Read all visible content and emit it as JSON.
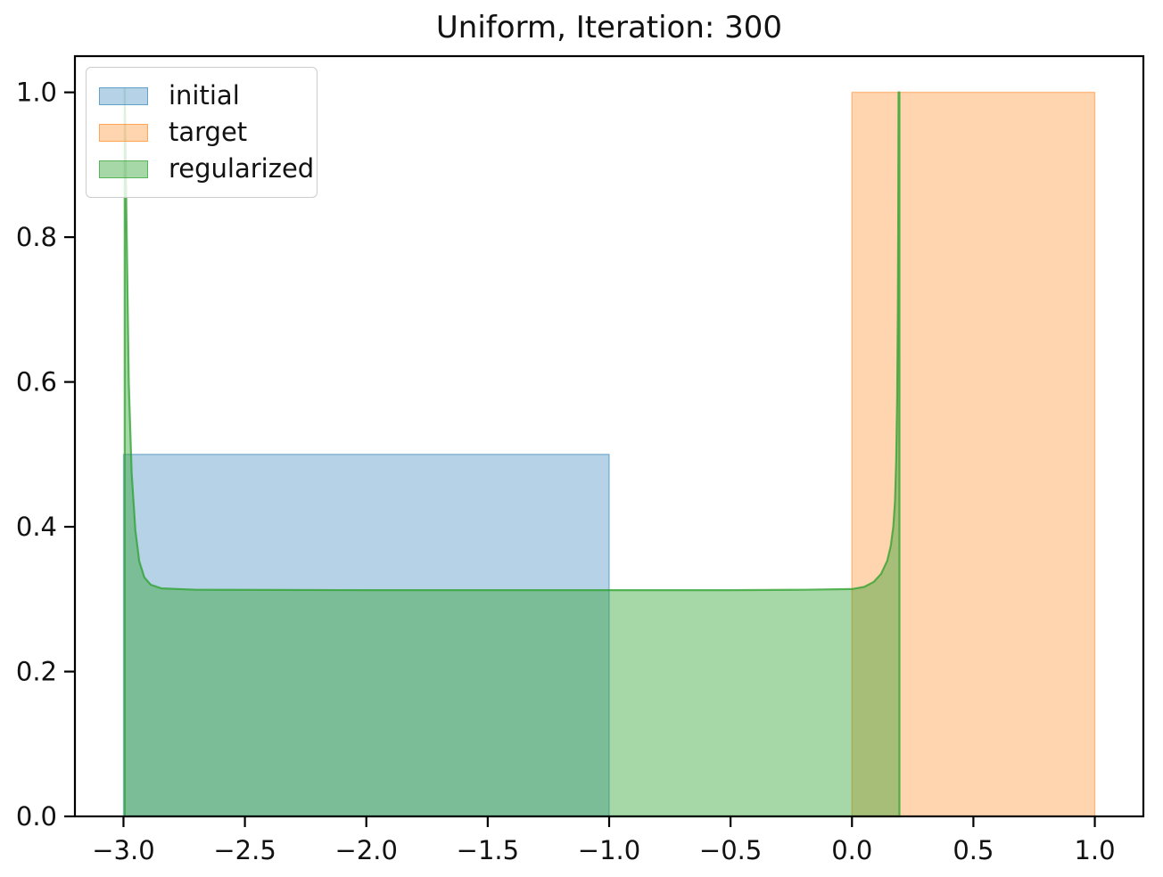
{
  "figure": {
    "title": "Uniform, Iteration: 300"
  },
  "legend": {
    "position": "upper left",
    "items": [
      {
        "label": "initial",
        "color": "#1f77b4"
      },
      {
        "label": "target",
        "color": "#ff7f0e"
      },
      {
        "label": "regularized",
        "color": "#2ca02c"
      }
    ]
  },
  "chart_data": {
    "type": "area",
    "title": "Uniform, Iteration: 300",
    "xlabel": "",
    "ylabel": "",
    "grid": false,
    "legend_position": "upper left",
    "xlim": [
      -3.2,
      1.2
    ],
    "ylim": [
      0,
      1.05
    ],
    "x_ticks": {
      "values": [
        -3.0,
        -2.5,
        -2.0,
        -1.5,
        -1.0,
        -0.5,
        0.0,
        0.5,
        1.0
      ],
      "labels": [
        "−3.0",
        "−2.5",
        "−2.0",
        "−1.5",
        "−1.0",
        "−0.5",
        "0.0",
        "0.5",
        "1.0"
      ]
    },
    "y_ticks": {
      "values": [
        0.0,
        0.2,
        0.4,
        0.6,
        0.8,
        1.0
      ],
      "labels": [
        "0.0",
        "0.2",
        "0.4",
        "0.6",
        "0.8",
        "1.0"
      ]
    },
    "series": [
      {
        "name": "initial",
        "kind": "uniform",
        "support": [
          -3.0,
          -1.0
        ],
        "height": 0.5,
        "color": "#1f77b4",
        "fill_opacity": 0.33,
        "stroke_opacity": 0.45,
        "stroke_width": 1.4,
        "points": [
          [
            -3.0,
            0
          ],
          [
            -3.0,
            0.5
          ],
          [
            -1.0,
            0.5
          ],
          [
            -1.0,
            0
          ]
        ]
      },
      {
        "name": "target",
        "kind": "uniform",
        "support": [
          0.0,
          1.0
        ],
        "height": 1.0,
        "color": "#ff7f0e",
        "fill_opacity": 0.33,
        "stroke_opacity": 0.45,
        "stroke_width": 1.4,
        "points": [
          [
            0.0,
            0
          ],
          [
            0.0,
            1.0
          ],
          [
            1.0,
            1.0
          ],
          [
            1.0,
            0
          ]
        ]
      },
      {
        "name": "regularized",
        "kind": "density",
        "support": [
          -3.0,
          0.195
        ],
        "plateau_height": 0.3125,
        "edge_spike_height": 1.0,
        "color": "#2ca02c",
        "fill_opacity": 0.42,
        "stroke_opacity": 0.75,
        "stroke_width": 2.2,
        "points": [
          [
            -2.995,
            0
          ],
          [
            -2.995,
            1.005
          ],
          [
            -2.9875,
            0.82
          ],
          [
            -2.978,
            0.6
          ],
          [
            -2.9665,
            0.475
          ],
          [
            -2.951,
            0.395
          ],
          [
            -2.935,
            0.352
          ],
          [
            -2.914,
            0.33
          ],
          [
            -2.888,
            0.32
          ],
          [
            -2.845,
            0.315
          ],
          [
            -2.7,
            0.313
          ],
          [
            -2.0,
            0.3125
          ],
          [
            -1.0,
            0.3125
          ],
          [
            -0.5,
            0.3125
          ],
          [
            -0.2,
            0.313
          ],
          [
            0.0,
            0.314
          ],
          [
            0.05,
            0.317
          ],
          [
            0.09,
            0.324
          ],
          [
            0.12,
            0.335
          ],
          [
            0.145,
            0.353
          ],
          [
            0.16,
            0.374
          ],
          [
            0.17,
            0.4
          ],
          [
            0.177,
            0.435
          ],
          [
            0.182,
            0.49
          ],
          [
            0.186,
            0.575
          ],
          [
            0.189,
            0.7
          ],
          [
            0.1905,
            0.82
          ],
          [
            0.1915,
            0.95
          ],
          [
            0.192,
            1.0
          ],
          [
            0.1955,
            1.0
          ],
          [
            0.1955,
            0
          ]
        ]
      }
    ]
  }
}
